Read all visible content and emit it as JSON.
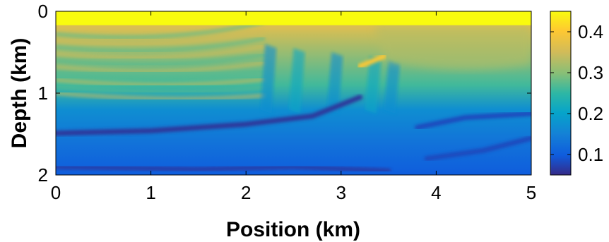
{
  "chart_data": {
    "type": "heatmap",
    "title": "",
    "xlabel": "Position (km)",
    "ylabel": "Depth (km)",
    "xlim": [
      0,
      5
    ],
    "ylim": [
      0,
      2
    ],
    "y_reversed": true,
    "x_ticks": [
      0,
      1,
      2,
      3,
      4,
      5
    ],
    "x_tick_labels": [
      "0",
      "1",
      "2",
      "3",
      "4",
      "5"
    ],
    "y_ticks": [
      0,
      1,
      2
    ],
    "y_tick_labels": [
      "0",
      "1",
      "2"
    ],
    "colorbar": {
      "colormap": "parula",
      "range": [
        0.05,
        0.45
      ],
      "ticks": [
        0.1,
        0.2,
        0.3,
        0.4
      ],
      "tick_labels": [
        "0.1",
        "0.2",
        "0.3",
        "0.4"
      ]
    },
    "grid": false,
    "features": {
      "top_layer": {
        "depth_range_km": [
          0,
          0.17
        ],
        "value": 0.45
      },
      "background_layers": [
        {
          "depth_km": 0.2,
          "value": 0.36
        },
        {
          "depth_km": 0.9,
          "value": 0.26
        },
        {
          "depth_km": 1.2,
          "value": 0.17
        },
        {
          "depth_km": 1.6,
          "value": 0.13
        },
        {
          "depth_km": 2.0,
          "value": 0.1
        }
      ],
      "reflectors": [
        {
          "points": [
            [
              0,
              1.49
            ],
            [
              1.0,
              1.46
            ],
            [
              2.0,
              1.38
            ],
            [
              2.7,
              1.28
            ],
            [
              3.2,
              1.05
            ]
          ],
          "value": 0.06
        },
        {
          "points": [
            [
              0,
              1.9
            ],
            [
              1.5,
              1.93
            ],
            [
              2.5,
              1.9
            ],
            [
              3.5,
              1.95
            ]
          ],
          "value": 0.07
        },
        {
          "points": [
            [
              3.8,
              1.42
            ],
            [
              4.3,
              1.3
            ],
            [
              5.0,
              1.25
            ]
          ],
          "value": 0.08
        },
        {
          "points": [
            [
              3.9,
              1.8
            ],
            [
              4.5,
              1.7
            ],
            [
              5.0,
              1.55
            ]
          ],
          "value": 0.08
        },
        {
          "points": [
            [
              3.2,
              0.67
            ],
            [
              3.45,
              0.55
            ]
          ],
          "value": 0.4
        }
      ],
      "fault_blocks_x_km": [
        2.2,
        2.5,
        2.9,
        3.3,
        3.5
      ]
    }
  }
}
